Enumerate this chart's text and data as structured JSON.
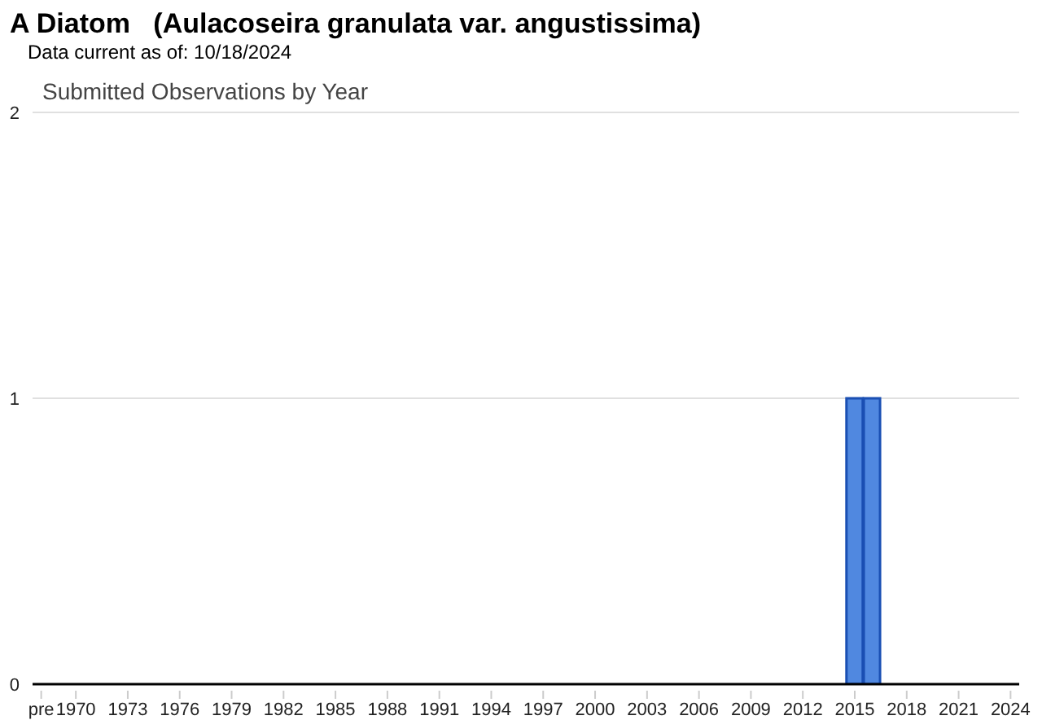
{
  "chart_data": {
    "type": "bar",
    "title": "A Diatom   (Aulacoseira granulata var. angustissima)",
    "subtitle": "Data current as of: 10/18/2024",
    "annotations": [
      "Submitted Observations by Year"
    ],
    "categories": [
      "pre",
      null,
      "1970",
      null,
      null,
      "1973",
      null,
      null,
      "1976",
      null,
      null,
      "1979",
      null,
      null,
      "1982",
      null,
      null,
      "1985",
      null,
      null,
      "1988",
      null,
      null,
      "1991",
      null,
      null,
      "1994",
      null,
      null,
      "1997",
      null,
      null,
      "2000",
      null,
      null,
      "2003",
      null,
      null,
      "2006",
      null,
      null,
      "2009",
      null,
      null,
      "2012",
      null,
      null,
      "2015",
      null,
      null,
      "2018",
      null,
      null,
      "2021",
      null,
      null,
      "2024"
    ],
    "values": [
      0,
      0,
      0,
      0,
      0,
      0,
      0,
      0,
      0,
      0,
      0,
      0,
      0,
      0,
      0,
      0,
      0,
      0,
      0,
      0,
      0,
      0,
      0,
      0,
      0,
      0,
      0,
      0,
      0,
      0,
      0,
      0,
      0,
      0,
      0,
      0,
      0,
      0,
      0,
      0,
      0,
      0,
      0,
      0,
      0,
      0,
      0,
      1,
      1,
      0,
      0,
      0,
      0,
      0,
      0,
      0,
      0
    ],
    "color": "#5088e0",
    "ylim": [
      0,
      2
    ],
    "yticks": [
      0,
      1,
      2
    ],
    "grid": "y"
  }
}
